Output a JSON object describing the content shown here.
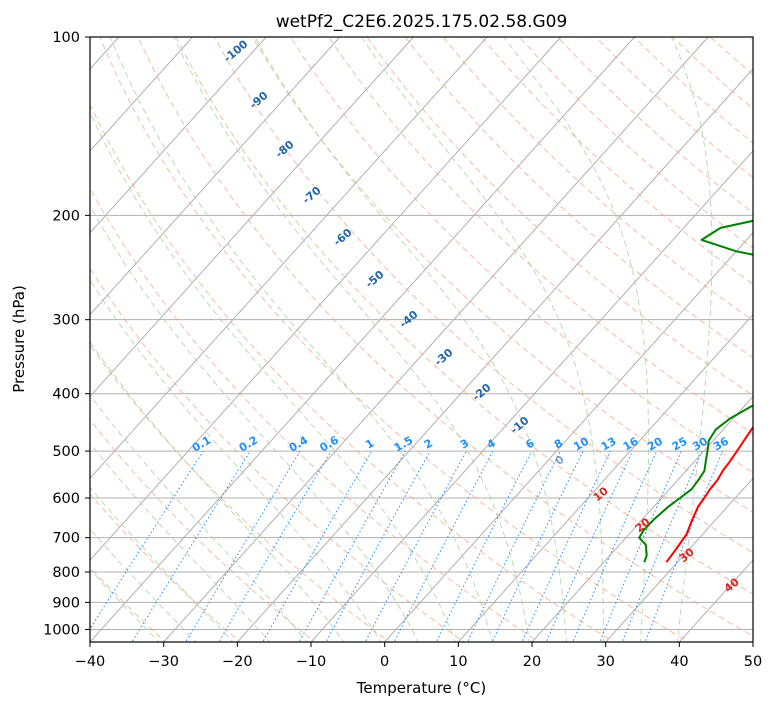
{
  "chart_data": {
    "type": "line",
    "subtype": "skew-T log-P diagram",
    "title": "wetPf2_C2E6.2025.175.02.58.G09",
    "xlabel": "Temperature (°C)",
    "ylabel": "Pressure (hPa)",
    "xlim": [
      -40,
      50
    ],
    "ylim": [
      1050,
      100
    ],
    "y_scale": "log",
    "grid": true,
    "x_ticks": [
      -40,
      -30,
      -20,
      -10,
      0,
      10,
      20,
      30,
      40,
      50
    ],
    "y_ticks": [
      100,
      200,
      300,
      400,
      500,
      600,
      700,
      800,
      900,
      1000
    ],
    "series": [
      {
        "color": "#ff0000",
        "x": [
          28.5,
          28.2,
          27.8,
          27.0,
          26.5,
          26.0,
          25.8,
          25.5,
          25.4,
          25.0,
          24.8,
          24.5,
          24.0,
          23.5,
          23.2,
          22.8,
          22.3,
          21.8,
          20.2,
          18.0,
          15.8,
          14.0,
          12.4,
          11.0,
          10.1,
          9.1,
          8.2,
          7.8,
          7.5,
          7.0,
          6.5,
          5.9,
          5.3,
          5.0,
          4.8,
          4.8,
          5.0,
          5.2
        ],
        "y": [
          770,
          730,
          690,
          660,
          640,
          620,
          600,
          580,
          560,
          540,
          520,
          500,
          470,
          440,
          420,
          400,
          380,
          360,
          320,
          290,
          260,
          240,
          225,
          210,
          200,
          185,
          170,
          160,
          150,
          140,
          130,
          122,
          115,
          110,
          106,
          103,
          101,
          100
        ]
      },
      {
        "color": "#008000",
        "x": [
          25.5,
          25.0,
          23.6,
          21.8,
          21.5,
          21.6,
          22.0,
          22.5,
          23.0,
          22.8,
          22.5,
          21.5,
          20.5,
          19.4,
          19.0,
          19.6,
          21.0,
          23.3,
          22.6,
          20.8,
          20.6,
          19.8,
          19.0,
          17.0,
          13.6,
          9.9,
          9.7,
          10.5,
          8.7,
          0.0,
          -6.1,
          -5.0,
          1.3,
          6.3,
          6.5,
          5.5,
          3.7,
          1.0,
          -1.9,
          -1.4,
          -1.0,
          0.2,
          1.0
        ],
        "y": [
          770,
          750,
          720,
          700,
          680,
          650,
          620,
          600,
          580,
          560,
          540,
          520,
          500,
          480,
          460,
          440,
          420,
          400,
          380,
          360,
          340,
          320,
          310,
          300,
          290,
          280,
          265,
          255,
          240,
          230,
          220,
          210,
          200,
          185,
          175,
          165,
          155,
          148,
          140,
          132,
          125,
          110,
          100
        ]
      }
    ],
    "mixing_ratio_labels": [
      "0.1",
      "0.2",
      "0.4",
      "0.6",
      "1",
      "1.5",
      "2",
      "3",
      "4",
      "6",
      "8",
      "10",
      "13",
      "16",
      "20",
      "25",
      "30",
      "36"
    ],
    "dry_adiabat_labels": [
      "-100",
      "-90",
      "-80",
      "-70",
      "-60",
      "-50",
      "-40",
      "-30",
      "-20",
      "-10",
      "0",
      "10",
      "20",
      "30",
      "40"
    ],
    "colors": {
      "temperature": "#ff0000",
      "dewpoint": "#008000",
      "isotherm": "#b0b0b0",
      "dry_adiabat": "#f4a582",
      "moist_adiabat": "#a6d4a0",
      "mixing_ratio": "#1e90ff",
      "dry_label": "#2166ac",
      "warm_label": "#d62728",
      "reference": "#e6c9a8"
    }
  }
}
